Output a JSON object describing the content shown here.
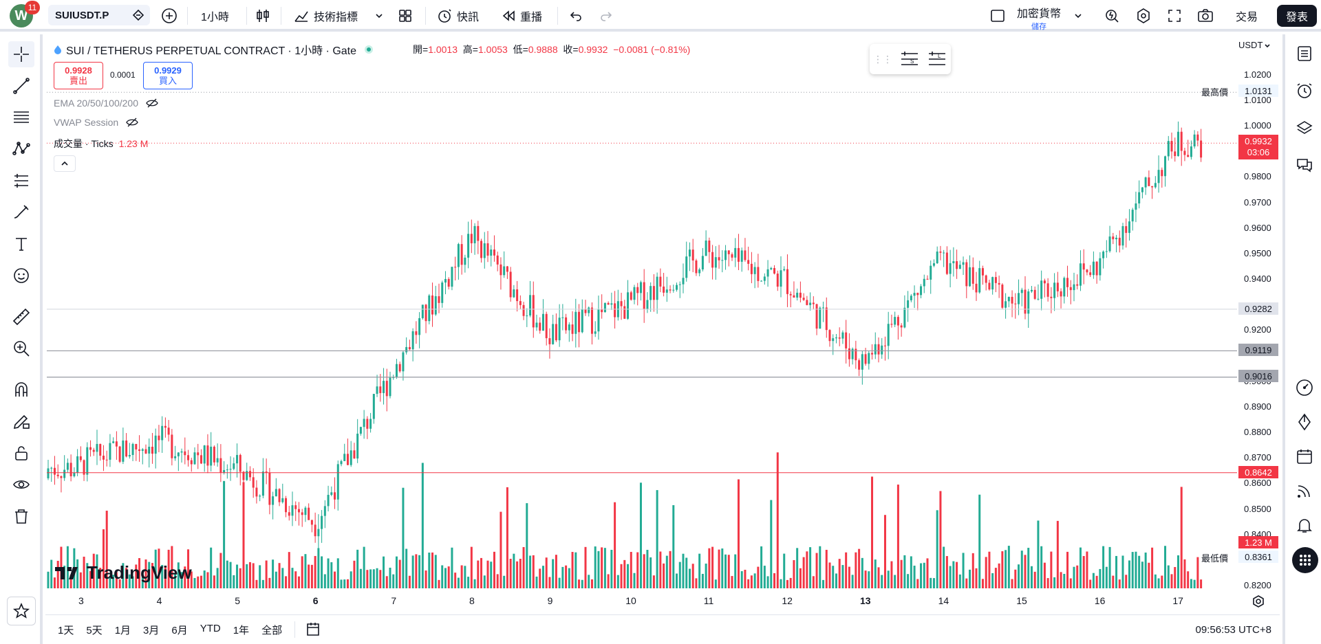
{
  "header": {
    "avatar_letter": "W",
    "notification_count": "11",
    "symbol": "SUIUSDT.P",
    "interval": "1小時",
    "indicators_label": "技術指標",
    "alerts_label": "快訊",
    "replay_label": "重播",
    "layout_name": "加密貨幣",
    "layout_status": "儲存",
    "trade_label": "交易",
    "publish_label": "發表"
  },
  "legend": {
    "title": "SUI / TETHERUS PERPETUAL CONTRACT · 1小時 · Gate",
    "open_label": "開=",
    "open": "1.0013",
    "high_label": "高=",
    "high": "1.0053",
    "low_label": "低=",
    "low": "0.9888",
    "close_label": "收=",
    "close": "0.9932",
    "change": "−0.0081 (−0.81%)",
    "sell_price": "0.9928",
    "sell_label": "賣出",
    "spread": "0.0001",
    "buy_price": "0.9929",
    "buy_label": "買入",
    "ind_ema": "EMA 20/50/100/200",
    "ind_vwap": "VWAP Session",
    "ind_volume": "成交量 · Ticks",
    "volume_value": "1.23 M"
  },
  "price_axis": {
    "currency": "USDT",
    "ticks": [
      "1.0200",
      "1.0100",
      "1.0000",
      "0.9800",
      "0.9700",
      "0.9600",
      "0.9500",
      "0.9400",
      "0.9200",
      "0.9000",
      "0.8900",
      "0.8800",
      "0.8700",
      "0.8600",
      "0.8500",
      "0.8400",
      "0.8200"
    ],
    "high_label": "最高價",
    "high_value": "1.0131",
    "low_label": "最低價",
    "low_value": "0.8361",
    "last_price": "0.9932",
    "countdown": "03:06",
    "line1": "0.9282",
    "line2": "0.9119",
    "line3": "0.9016",
    "red_line": "0.8642",
    "volume_label": "1.23 M"
  },
  "time_axis": [
    "3",
    "4",
    "5",
    "6",
    "7",
    "8",
    "9",
    "10",
    "11",
    "12",
    "13",
    "14",
    "15",
    "16",
    "17"
  ],
  "bottom": {
    "periods": [
      "1天",
      "5天",
      "1月",
      "3月",
      "6月",
      "YTD",
      "1年",
      "全部"
    ],
    "clock": "09:56:53 UTC+8"
  },
  "watermark": "TradingView",
  "colors": {
    "up": "#22ab94",
    "down": "#f23645",
    "accent": "#2962ff"
  },
  "chart_data": {
    "type": "candlestick",
    "x": [
      "3",
      "4",
      "5",
      "6",
      "7",
      "8",
      "9",
      "10",
      "11",
      "12",
      "13",
      "14",
      "15",
      "16",
      "17"
    ],
    "close_by_day": [
      0.868,
      0.877,
      0.866,
      0.845,
      0.905,
      0.957,
      0.918,
      0.93,
      0.95,
      0.94,
      0.907,
      0.947,
      0.93,
      0.945,
      0.993
    ],
    "ylim": [
      0.82,
      1.025
    ]
  }
}
